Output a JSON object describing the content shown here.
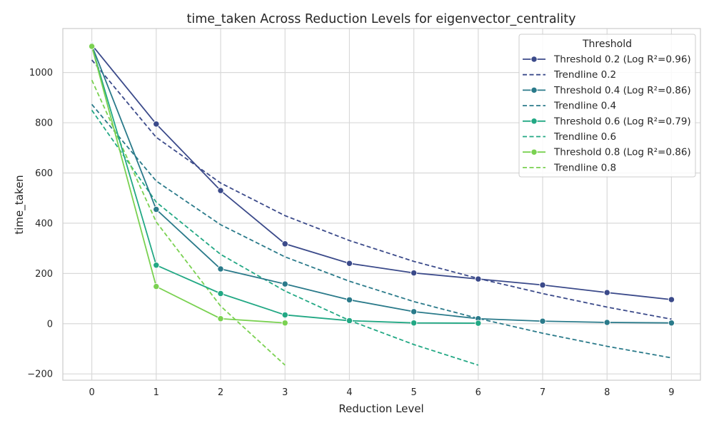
{
  "chart_data": {
    "type": "line",
    "title": "time_taken Across Reduction Levels for eigenvector_centrality",
    "xlabel": "Reduction Level",
    "ylabel": "time_taken",
    "xlim": [
      -0.45,
      9.45
    ],
    "ylim": [
      -225,
      1175
    ],
    "x_ticks": [
      0,
      1,
      2,
      3,
      4,
      5,
      6,
      7,
      8,
      9
    ],
    "y_ticks": [
      -200,
      0,
      200,
      400,
      600,
      800,
      1000
    ],
    "y_tick_labels": [
      "−200",
      "0",
      "200",
      "400",
      "600",
      "800",
      "1000"
    ],
    "grid": true,
    "legend": {
      "title": "Threshold",
      "placement": "top-right",
      "entries": [
        "Threshold 0.2 (Log R²=0.96)",
        "Trendline 0.2",
        "Threshold 0.4 (Log R²=0.86)",
        "Trendline 0.4",
        "Threshold 0.6 (Log R²=0.79)",
        "Trendline 0.6",
        "Threshold 0.8 (Log R²=0.86)",
        "Trendline 0.8"
      ]
    },
    "series": [
      {
        "name": "Threshold 0.2 (Log R²=0.96)",
        "color": "#3b4a8a",
        "x": [
          0,
          1,
          2,
          3,
          4,
          5,
          6,
          7,
          8,
          9
        ],
        "y": [
          1110,
          795,
          530,
          318,
          240,
          202,
          178,
          154,
          124,
          96
        ],
        "trend_name": "Trendline 0.2",
        "trend_x": [
          0,
          1,
          2,
          3,
          4,
          5,
          6,
          7,
          8,
          9
        ],
        "trend_y": [
          1050,
          742,
          560,
          430,
          331,
          248,
          180,
          120,
          66,
          18
        ]
      },
      {
        "name": "Threshold 0.4 (Log R²=0.86)",
        "color": "#2a7a8a",
        "x": [
          0,
          1,
          2,
          3,
          4,
          5,
          6,
          7,
          8,
          9
        ],
        "y": [
          1108,
          455,
          218,
          158,
          95,
          48,
          20,
          10,
          5,
          3
        ],
        "trend_name": "Trendline 0.4",
        "trend_x": [
          0,
          1,
          2,
          3,
          4,
          5,
          6,
          7,
          8,
          9
        ],
        "trend_y": [
          873,
          568,
          394,
          266,
          169,
          88,
          21,
          -38,
          -90,
          -136
        ]
      },
      {
        "name": "Threshold 0.6 (Log R²=0.79)",
        "color": "#22a884",
        "x": [
          0,
          1,
          2,
          3,
          4,
          5,
          6
        ],
        "y": [
          1105,
          233,
          120,
          35,
          12,
          3,
          2
        ],
        "trend_name": "Trendline 0.6",
        "trend_x": [
          0,
          1,
          2,
          3,
          4,
          5,
          6
        ],
        "trend_y": [
          850,
          484,
          276,
          130,
          13,
          -83,
          -165
        ]
      },
      {
        "name": "Threshold 0.8 (Log R²=0.86)",
        "color": "#7ad151",
        "x": [
          0,
          1,
          2,
          3
        ],
        "y": [
          1104,
          148,
          20,
          3
        ],
        "trend_name": "Trendline 0.8",
        "trend_x": [
          0,
          1,
          2,
          3
        ],
        "trend_y": [
          970,
          405,
          70,
          -165
        ]
      }
    ]
  }
}
